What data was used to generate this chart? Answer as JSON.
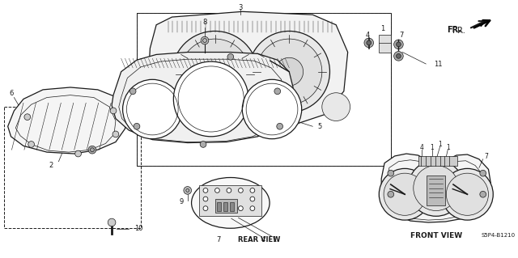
{
  "bg_color": "#ffffff",
  "line_color": "#1a1a1a",
  "fig_w": 6.4,
  "fig_h": 3.19,
  "fr_label": "FR.",
  "rear_view_label": "REAR VIEW",
  "front_view_label": "FRONT VIEW",
  "part_code": "S5P4-B1210"
}
